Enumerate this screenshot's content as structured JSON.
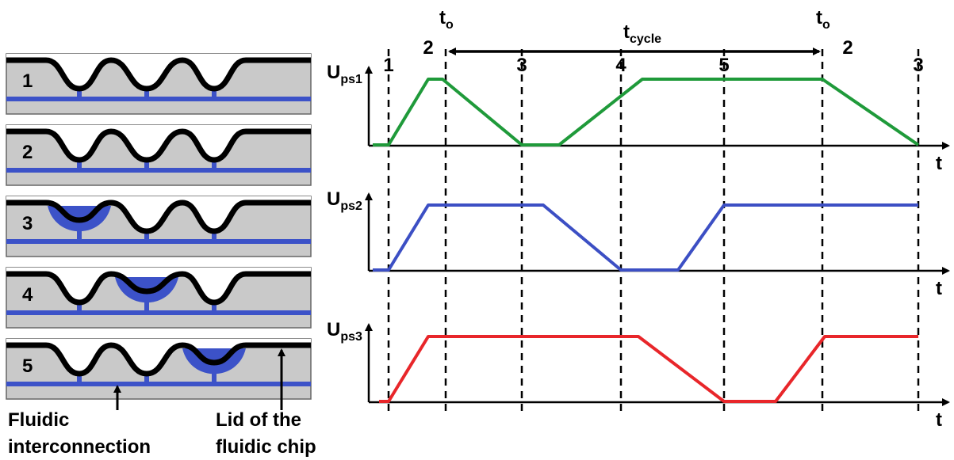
{
  "panels": [
    {
      "label": "1"
    },
    {
      "label": "2"
    },
    {
      "label": "3"
    },
    {
      "label": "4"
    },
    {
      "label": "5"
    }
  ],
  "annotations": {
    "fluidic_interconnection": [
      "Fluidic",
      "interconnection"
    ],
    "lid": [
      "Lid of the",
      "fluidic chip"
    ]
  },
  "timing": {
    "phase_labels": [
      "1",
      "2",
      "3",
      "4",
      "5",
      "2",
      "3"
    ],
    "t_o": [
      {
        "main": "t",
        "sub": "o"
      },
      {
        "main": "t",
        "sub": "o"
      }
    ],
    "t_cycle": {
      "main": "t",
      "sub": "cycle"
    },
    "signals": [
      {
        "main": "U",
        "sub": "ps1",
        "color": "#1f9a3a"
      },
      {
        "main": "U",
        "sub": "ps2",
        "color": "#3c4fc4"
      },
      {
        "main": "U",
        "sub": "ps3",
        "color": "#e8262a"
      }
    ],
    "time_axis_label": "t"
  }
}
